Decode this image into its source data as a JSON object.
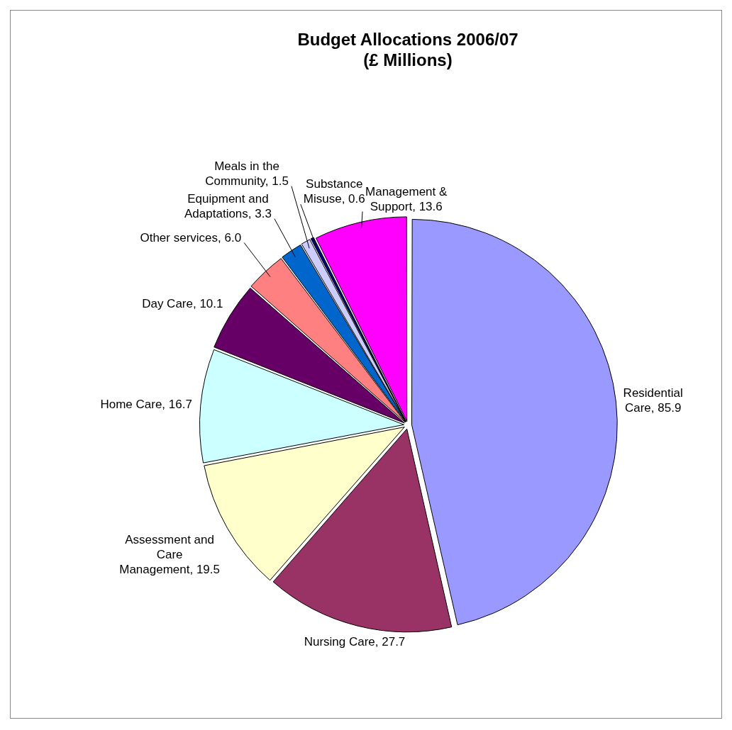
{
  "chart_data": {
    "type": "pie",
    "title": "Budget Allocations 2006/07\n(£ Millions)",
    "categories": [
      "Residential Care",
      "Nursing Care",
      "Assessment and Care Management",
      "Home Care",
      "Day Care",
      "Other services",
      "Equipment and Adaptations",
      "Meals in the Community",
      "Substance Misuse",
      "Management & Support"
    ],
    "values": [
      85.9,
      27.7,
      19.5,
      16.7,
      10.1,
      6.0,
      3.3,
      1.5,
      0.6,
      13.6
    ],
    "value_labels": [
      "85.9",
      "27.7",
      "19.5",
      "16.7",
      "10.1",
      "6.0",
      "3.3",
      "1.5",
      "0.6",
      "13.6"
    ],
    "colors": [
      "#9999ff",
      "#993366",
      "#ffffcc",
      "#ccffff",
      "#660066",
      "#ff8080",
      "#0066cc",
      "#ccccff",
      "#000080",
      "#ff00ff"
    ],
    "legend": false
  }
}
